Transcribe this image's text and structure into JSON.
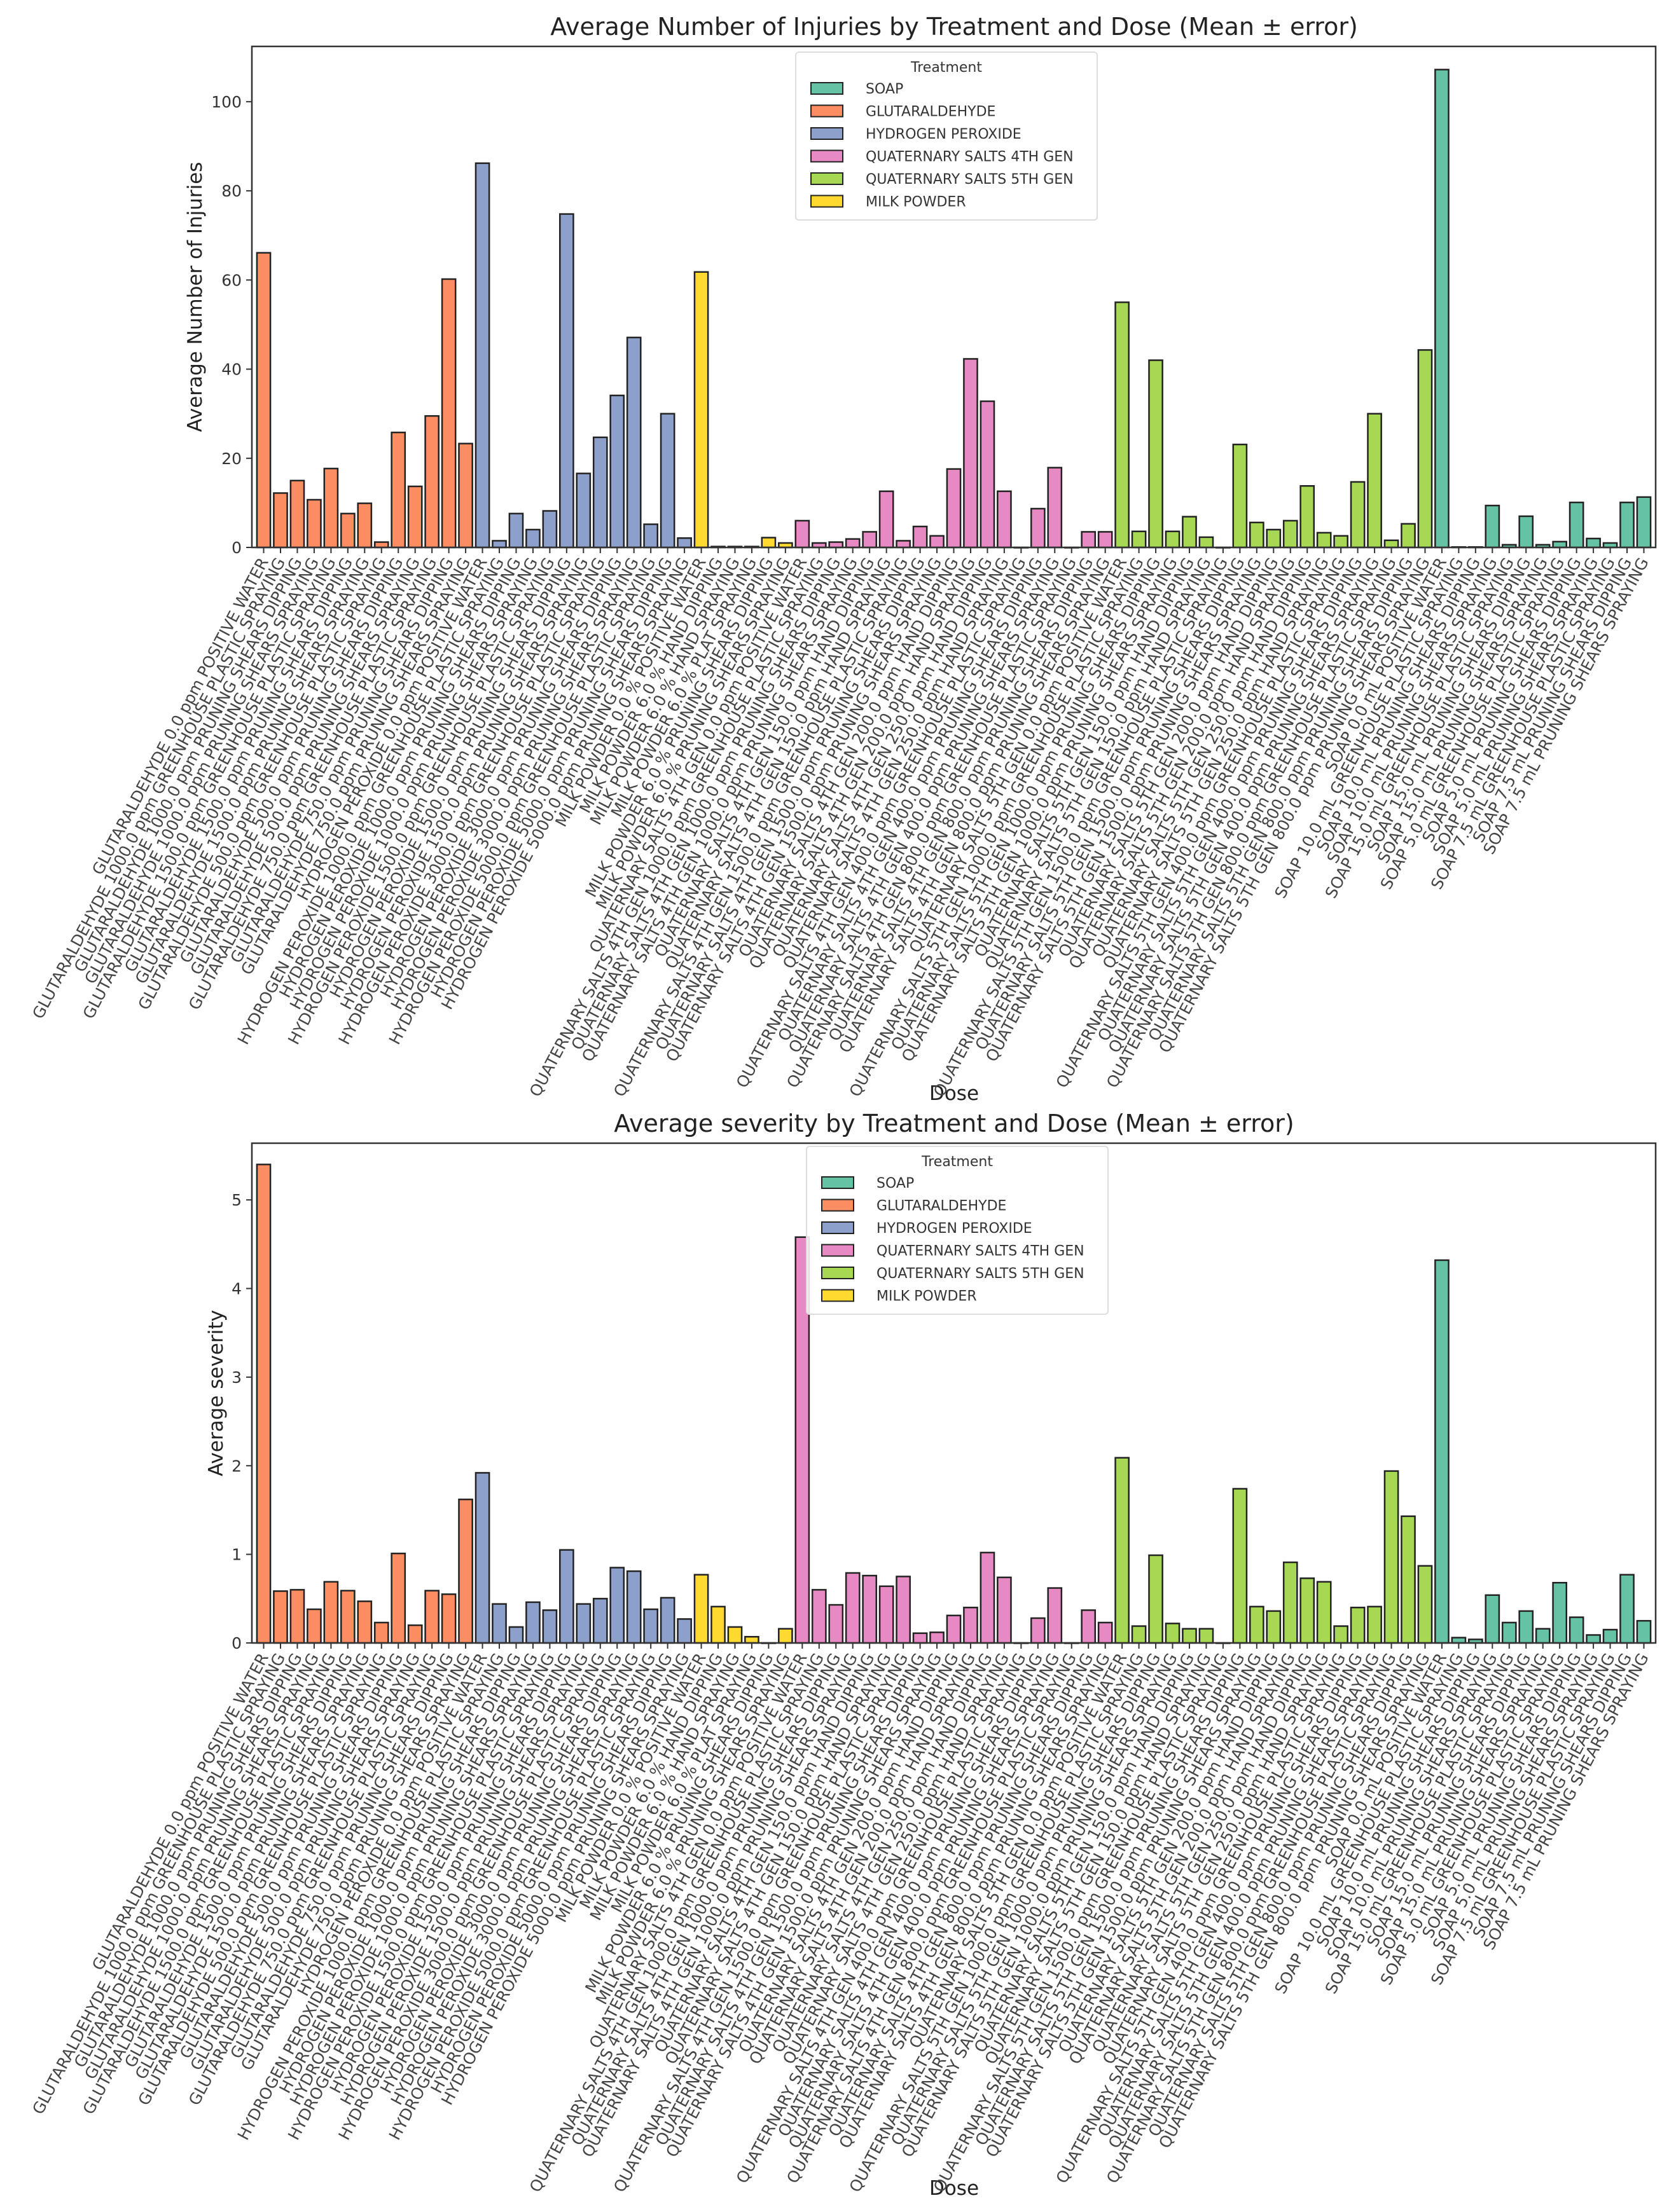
{
  "legend": {
    "title": "Treatment",
    "entries": [
      {
        "label": "SOAP",
        "color": "#66c2a5"
      },
      {
        "label": "GLUTARALDEHYDE",
        "color": "#fc8d62"
      },
      {
        "label": "HYDROGEN PEROXIDE",
        "color": "#8da0cb"
      },
      {
        "label": "QUATERNARY SALTS 4TH GEN",
        "color": "#e78ac3"
      },
      {
        "label": "QUATERNARY SALTS 5TH GEN",
        "color": "#a6d854"
      },
      {
        "label": "MILK POWDER",
        "color": "#ffd92f"
      }
    ]
  },
  "groups": [
    {
      "treatment": "GLUTARALDEHYDE",
      "n": 13
    },
    {
      "treatment": "HYDROGEN PEROXIDE",
      "n": 13
    },
    {
      "treatment": "MILK POWDER",
      "n": 6
    },
    {
      "treatment": "QUATERNARY SALTS 4TH GEN",
      "n": 19
    },
    {
      "treatment": "QUATERNARY SALTS 5TH GEN",
      "n": 19
    },
    {
      "treatment": "SOAP",
      "n": 13
    }
  ],
  "categories": [
    "GLUTARALDEHYDE 0.0 ppm POSITIVE WATER",
    "GLUTARALDEHYDE 1000.0 ppm GREENHOUSE PLASTIC SPRAYING",
    "GLUTARALDEHYDE 1000.0 ppm PRUNING SHEARS DIPPING",
    "GLUTARALDEHYDE 1000.0 ppm PRUNING SHEARS SPRAYING",
    "GLUTARALDEHYDE 1500.0 ppm GREENHOUSE PLASTIC SPRAYING",
    "GLUTARALDEHYDE 1500.0 ppm PRUNING SHEARS DIPPING",
    "GLUTARALDEHYDE 1500.0 ppm PRUNING SHEARS SPRAYING",
    "GLUTARALDEHYDE 500.0 ppm GREENHOUSE PLASTIC SPRAYING",
    "GLUTARALDEHYDE 500.0 ppm PRUNING SHEARS DIPPING",
    "GLUTARALDEHYDE 500.0 ppm PRUNING SHEARS SPRAYING",
    "GLUTARALDEHYDE 750.0 ppm GREENHOUSE PLASTIC SPRAYING",
    "GLUTARALDEHYDE 750.0 ppm PRUNING SHEARS DIPPING",
    "GLUTARALDEHYDE 750.0 ppm PRUNING SHEARS SPRAYING",
    "HYDROGEN PEROXIDE 0.0 ppm POSITIVE WATER",
    "HYDROGEN PEROXIDE 1000.0 ppm GREENHOUSE PLASTIC SPRAYING",
    "HYDROGEN PEROXIDE 1000.0 ppm PRUNING SHEARS DIPPING",
    "HYDROGEN PEROXIDE 1000.0 ppm PRUNING SHEARS SPRAYING",
    "HYDROGEN PEROXIDE 1500.0 ppm GREENHOUSE PLASTIC SPRAYING",
    "HYDROGEN PEROXIDE 1500.0 ppm PRUNING SHEARS DIPPING",
    "HYDROGEN PEROXIDE 1500.0 ppm PRUNING SHEARS SPRAYING",
    "HYDROGEN PEROXIDE 3000.0 ppm GREENHOUSE PLASTIC SPRAYING",
    "HYDROGEN PEROXIDE 3000.0 ppm PRUNING SHEARS DIPPING",
    "HYDROGEN PEROXIDE 3000.0 ppm PRUNING SHEARS SPRAYING",
    "HYDROGEN PEROXIDE 5000.0 ppm GREENHOUSE PLASTIC SPRAYING",
    "HYDROGEN PEROXIDE 5000.0 ppm PRUNING SHEARS DIPPING",
    "HYDROGEN PEROXIDE 5000.0 ppm PRUNING SHEARS SPRAYING",
    "MILK POWDER 0.0 % POSITIVE WATER",
    "MILK POWDER 6.0 % HAND DIPPING",
    "MILK POWDER 6.0 % HAND SPRAYING",
    "MILK POWDER 6.0 % PLAT SPRAYING",
    "MILK POWDER 6.0 % PRUNING SHEARS DIPPING",
    "MILK POWDER 6.0 % PRUNING SHEARS SPRAYING",
    "QUATERNARY SALTS 4TH GEN 0.0 ppm POSITIVE WATER",
    "QUATERNARY SALTS 4TH GEN 1000.0 ppm GREENHOUSE PLASTIC SPRAYING",
    "QUATERNARY SALTS 4TH GEN 1000.0 ppm PRUNING SHEARS DIPPING",
    "QUATERNARY SALTS 4TH GEN 1000.0 ppm PRUNING SHEARS SPRAYING",
    "QUATERNARY SALTS 4TH GEN 150.0 ppm HAND DIPPING",
    "QUATERNARY SALTS 4TH GEN 150.0 ppm HAND SPRAYING",
    "QUATERNARY SALTS 4TH GEN 1500.0 ppm GREENHOUSE PLASTIC SPRAYING",
    "QUATERNARY SALTS 4TH GEN 1500.0 ppm PRUNING SHEARS DIPPING",
    "QUATERNARY SALTS 4TH GEN 1500.0 ppm PRUNING SHEARS SPRAYING",
    "QUATERNARY SALTS 4TH GEN 200.0 ppm HAND DIPPING",
    "QUATERNARY SALTS 4TH GEN 200.0 ppm HAND SPRAYING",
    "QUATERNARY SALTS 4TH GEN 250.0 ppm HAND DIPPING",
    "QUATERNARY SALTS 4TH GEN 250.0 ppm HAND SPRAYING",
    "QUATERNARY SALTS 4TH GEN 400.0 ppm GREENHOUSE PLASTIC SPRAYING",
    "QUATERNARY SALTS 4TH GEN 400.0 ppm PRUNING SHEARS DIPPING",
    "QUATERNARY SALTS 4TH GEN 400.0 ppm PRUNING SHEARS SPRAYING",
    "QUATERNARY SALTS 4TH GEN 800.0 ppm GREENHOUSE PLASTIC SPRAYING",
    "QUATERNARY SALTS 4TH GEN 800.0 ppm PRUNING SHEARS DIPPING",
    "QUATERNARY SALTS 4TH GEN 800.0 ppm PRUNING SHEARS SPRAYING",
    "QUATERNARY SALTS 5TH GEN 0.0 ppm POSITIVE WATER",
    "QUATERNARY SALTS 5TH GEN 1000.0 ppm GREENHOUSE PLASTIC SPRAYING",
    "QUATERNARY SALTS 5TH GEN 1000.0 ppm PRUNING SHEARS DIPPING",
    "QUATERNARY SALTS 5TH GEN 1000.0 ppm PRUNING SHEARS SPRAYING",
    "QUATERNARY SALTS 5TH GEN 150.0 ppm HAND DIPPING",
    "QUATERNARY SALTS 5TH GEN 150.0 ppm HAND SPRAYING",
    "QUATERNARY SALTS 5TH GEN 1500.0 ppm GREENHOUSE PLASTIC SPRAYING",
    "QUATERNARY SALTS 5TH GEN 1500.0 ppm PRUNING SHEARS DIPPING",
    "QUATERNARY SALTS 5TH GEN 1500.0 ppm PRUNING SHEARS SPRAYING",
    "QUATERNARY SALTS 5TH GEN 200.0 ppm HAND DIPPING",
    "QUATERNARY SALTS 5TH GEN 200.0 ppm HAND SPRAYING",
    "QUATERNARY SALTS 5TH GEN 250.0 ppm HAND DIPPING",
    "QUATERNARY SALTS 5TH GEN 250.0 ppm HAND SPRAYING",
    "QUATERNARY SALTS 5TH GEN 400.0 ppm GREENHOUSE PLASTIC SPRAYING",
    "QUATERNARY SALTS 5TH GEN 400.0 ppm PRUNING SHEARS DIPPING",
    "QUATERNARY SALTS 5TH GEN 400.0 ppm PRUNING SHEARS SPRAYING",
    "QUATERNARY SALTS 5TH GEN 800.0 ppm GREENHOUSE PLASTIC SPRAYING",
    "QUATERNARY SALTS 5TH GEN 800.0 ppm PRUNING SHEARS DIPPING",
    "QUATERNARY SALTS 5TH GEN 800.0 ppm PRUNING SHEARS SPRAYING",
    "SOAP 0.0 mL POSITIVE WATER",
    "SOAP 10.0 mL GREENHOUSE PLASTIC SPRAYING",
    "SOAP 10.0 mL PRUNING SHEARS DIPPING",
    "SOAP 10.0 mL PRUNING SHEARS SPRAYING",
    "SOAP 15.0 mL GREENHOUSE PLASTIC SPRAYING",
    "SOAP 15.0 mL PRUNING SHEARS DIPPING",
    "SOAP 15.0 mL PRUNING SHEARS SPRAYING",
    "SOAP 5.0 mL GREENHOUSE PLASTIC SPRAYING",
    "SOAP 5.0 mL PRUNING SHEARS DIPPING",
    "SOAP 5.0 mL PRUNING SHEARS SPRAYING",
    "SOAP 7.5 mL GREENHOUSE PLASTIC SPRAYING",
    "SOAP 7.5 mL PRUNING SHEARS DIPPING",
    "SOAP 7.5 mL PRUNING SHEARS SPRAYING"
  ],
  "chart_data": [
    {
      "type": "bar",
      "title": "Average Number of Injuries by Treatment and Dose (Mean ± error)",
      "xlabel": "Dose",
      "ylabel": "Average Number of Injuries",
      "ylim": [
        0,
        112.4
      ],
      "yticks": [
        0,
        20,
        40,
        60,
        80,
        100
      ],
      "legend_position": "top-center",
      "grid": false,
      "values": [
        66.1,
        12.2,
        15,
        10.7,
        17.7,
        7.6,
        9.9,
        1.2,
        25.8,
        13.7,
        29.5,
        60.2,
        23.3,
        86.2,
        1.5,
        7.6,
        4,
        8.2,
        74.8,
        16.6,
        24.7,
        34.1,
        47.1,
        5.2,
        30,
        2.1,
        61.8,
        0.2,
        0.2,
        0.2,
        2.2,
        1.0,
        6,
        1,
        1.2,
        1.9,
        3.5,
        12.6,
        1.5,
        4.7,
        2.6,
        17.6,
        42.3,
        32.8,
        12.6,
        0,
        8.7,
        17.9,
        0,
        3.5,
        3.5,
        55,
        3.6,
        42,
        3.6,
        6.9,
        2.3,
        0,
        23.1,
        5.6,
        4,
        6,
        13.8,
        3.3,
        2.6,
        14.7,
        30,
        1.6,
        5.3,
        44.3,
        107.2,
        0.1,
        0.1,
        9.4,
        0.6,
        7,
        0.6,
        1.3,
        10.1,
        2,
        1,
        10.1,
        11.3
      ]
    },
    {
      "type": "bar",
      "title": "Average severity by Treatment and Dose (Mean ± error)",
      "xlabel": "Dose",
      "ylabel": "Average severity",
      "ylim": [
        0,
        5.64
      ],
      "yticks": [
        0,
        1,
        2,
        3,
        4,
        5
      ],
      "legend_position": "top-center",
      "grid": false,
      "values": [
        5.4,
        0.585,
        0.6,
        0.38,
        0.69,
        0.59,
        0.47,
        0.23,
        1.01,
        0.2,
        0.59,
        0.55,
        1.62,
        1.92,
        0.44,
        0.18,
        0.46,
        0.37,
        1.05,
        0.44,
        0.5,
        0.85,
        0.81,
        0.38,
        0.51,
        0.27,
        0.77,
        0.41,
        0.18,
        0.07,
        0,
        0.16,
        4.58,
        0.6,
        0.43,
        0.79,
        0.76,
        0.64,
        0.75,
        0.11,
        0.12,
        0.31,
        0.4,
        1.02,
        0.74,
        0,
        0.28,
        0.62,
        0,
        0.37,
        0.23,
        2.09,
        0.19,
        0.99,
        0.22,
        0.16,
        0.16,
        0,
        1.74,
        0.41,
        0.36,
        0.91,
        0.73,
        0.69,
        0.19,
        0.4,
        0.41,
        1.94,
        1.43,
        0.87,
        4.32,
        0.06,
        0.04,
        0.54,
        0.23,
        0.36,
        0.16,
        0.68,
        0.29,
        0.09,
        0.15,
        0.77,
        0.25
      ]
    }
  ]
}
